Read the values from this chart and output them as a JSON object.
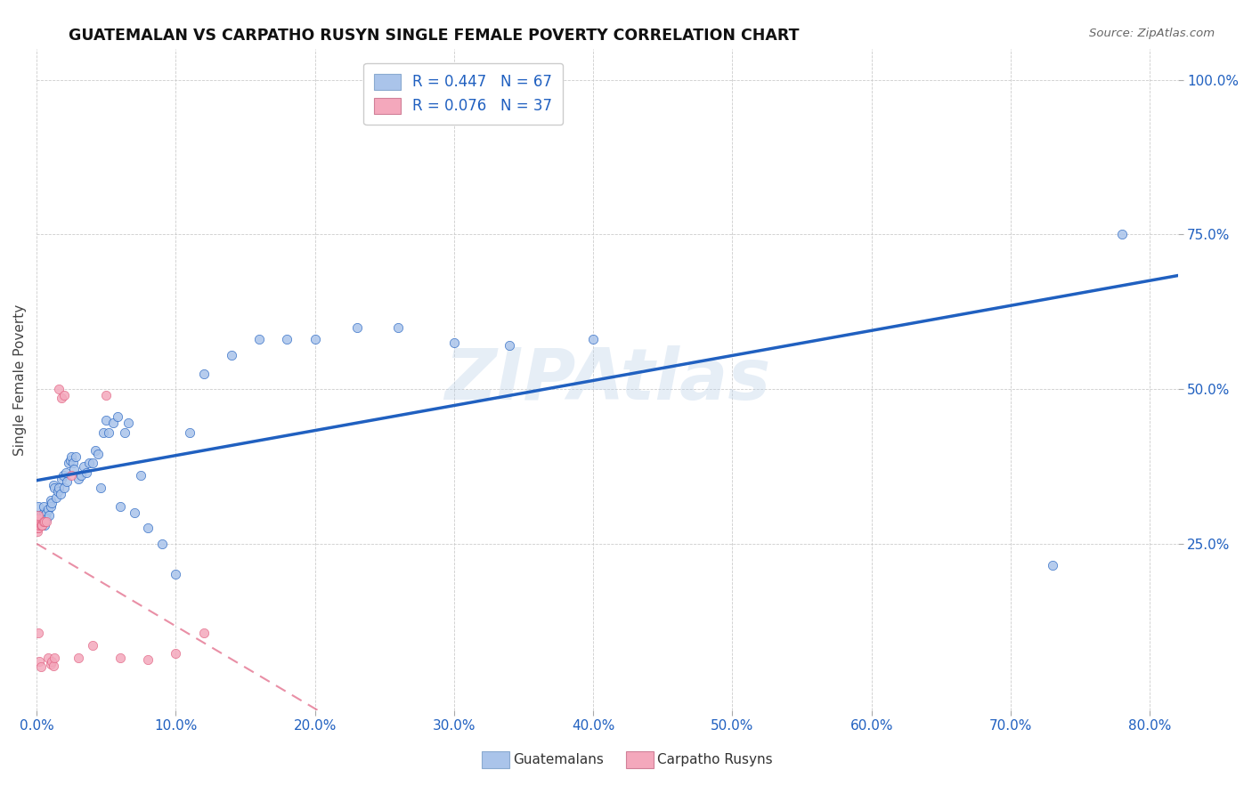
{
  "title": "GUATEMALAN VS CARPATHO RUSYN SINGLE FEMALE POVERTY CORRELATION CHART",
  "source": "Source: ZipAtlas.com",
  "ylabel": "Single Female Poverty",
  "legend_guatemalans": "Guatemalans",
  "legend_carpatho": "Carpatho Rusyns",
  "legend_r_guatemalan": "R = 0.447",
  "legend_n_guatemalan": "N = 67",
  "legend_r_carpatho": "R = 0.076",
  "legend_n_carpatho": "N = 37",
  "color_guatemalan": "#aac4ea",
  "color_carpatho": "#f4a8bc",
  "color_line_guatemalan": "#2060c0",
  "color_line_carpatho": "#e06080",
  "watermark": "ZIPAtlas",
  "guatemalan_x": [
    0.001,
    0.002,
    0.003,
    0.004,
    0.005,
    0.005,
    0.006,
    0.006,
    0.007,
    0.007,
    0.008,
    0.009,
    0.01,
    0.01,
    0.011,
    0.012,
    0.013,
    0.014,
    0.015,
    0.016,
    0.017,
    0.018,
    0.019,
    0.02,
    0.021,
    0.022,
    0.023,
    0.024,
    0.025,
    0.026,
    0.027,
    0.028,
    0.03,
    0.032,
    0.034,
    0.036,
    0.038,
    0.04,
    0.042,
    0.044,
    0.046,
    0.048,
    0.05,
    0.052,
    0.055,
    0.058,
    0.06,
    0.063,
    0.066,
    0.07,
    0.075,
    0.08,
    0.09,
    0.1,
    0.11,
    0.12,
    0.14,
    0.16,
    0.18,
    0.2,
    0.23,
    0.26,
    0.3,
    0.34,
    0.4,
    0.73,
    0.78
  ],
  "guatemalan_y": [
    0.31,
    0.285,
    0.295,
    0.29,
    0.3,
    0.31,
    0.295,
    0.28,
    0.3,
    0.29,
    0.305,
    0.295,
    0.32,
    0.31,
    0.315,
    0.345,
    0.34,
    0.325,
    0.335,
    0.34,
    0.33,
    0.355,
    0.36,
    0.34,
    0.365,
    0.35,
    0.38,
    0.385,
    0.39,
    0.38,
    0.37,
    0.39,
    0.355,
    0.36,
    0.375,
    0.365,
    0.38,
    0.38,
    0.4,
    0.395,
    0.34,
    0.43,
    0.45,
    0.43,
    0.445,
    0.455,
    0.31,
    0.43,
    0.445,
    0.3,
    0.36,
    0.275,
    0.25,
    0.2,
    0.43,
    0.525,
    0.555,
    0.58,
    0.58,
    0.58,
    0.6,
    0.6,
    0.575,
    0.57,
    0.58,
    0.215,
    0.75
  ],
  "carpatho_x": [
    0.0002,
    0.0003,
    0.0005,
    0.0005,
    0.0007,
    0.0008,
    0.001,
    0.001,
    0.001,
    0.001,
    0.001,
    0.0015,
    0.002,
    0.002,
    0.003,
    0.003,
    0.004,
    0.004,
    0.005,
    0.006,
    0.007,
    0.008,
    0.01,
    0.011,
    0.012,
    0.013,
    0.016,
    0.018,
    0.02,
    0.025,
    0.03,
    0.04,
    0.05,
    0.06,
    0.08,
    0.1,
    0.12
  ],
  "carpatho_y": [
    0.29,
    0.28,
    0.27,
    0.275,
    0.275,
    0.285,
    0.28,
    0.28,
    0.275,
    0.29,
    0.295,
    0.105,
    0.28,
    0.06,
    0.28,
    0.05,
    0.28,
    0.28,
    0.285,
    0.285,
    0.285,
    0.065,
    0.055,
    0.06,
    0.052,
    0.065,
    0.5,
    0.485,
    0.49,
    0.36,
    0.065,
    0.085,
    0.49,
    0.065,
    0.062,
    0.072,
    0.105
  ],
  "xlim": [
    0.0,
    0.82
  ],
  "ylim": [
    -0.02,
    1.05
  ],
  "xticks": [
    0.0,
    0.1,
    0.2,
    0.3,
    0.4,
    0.5,
    0.6,
    0.7,
    0.8
  ],
  "xticklabels": [
    "0.0%",
    "10.0%",
    "20.0%",
    "30.0%",
    "40.0%",
    "50.0%",
    "60.0%",
    "70.0%",
    "80.0%"
  ],
  "yticks": [
    0.25,
    0.5,
    0.75,
    1.0
  ],
  "yticklabels": [
    "25.0%",
    "50.0%",
    "75.0%",
    "100.0%"
  ]
}
